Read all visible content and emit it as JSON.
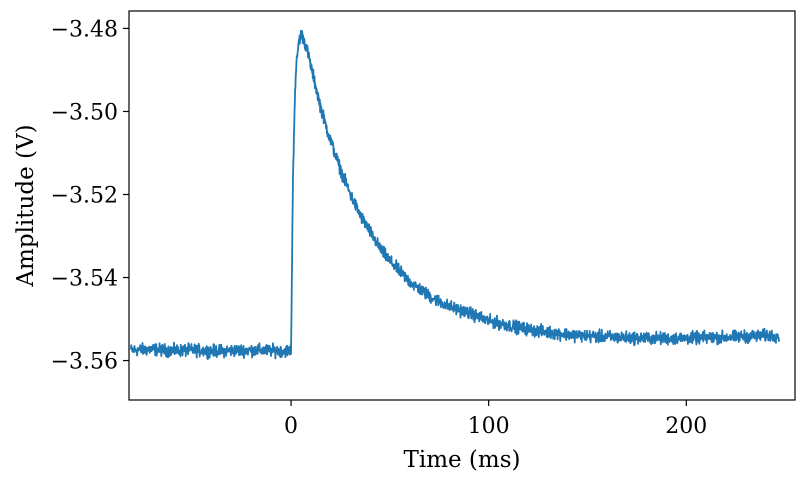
{
  "chart_data": {
    "type": "line",
    "title": "",
    "xlabel": "Time (ms)",
    "ylabel": "Amplitude (V)",
    "xlim": [
      -82,
      255
    ],
    "ylim": [
      -3.5695,
      -3.4758
    ],
    "xticks": [
      0,
      100,
      200
    ],
    "xtick_labels": [
      "0",
      "100",
      "200"
    ],
    "yticks": [
      -3.48,
      -3.5,
      -3.52,
      -3.54,
      -3.56
    ],
    "ytick_labels": [
      "−3.48",
      "−3.50",
      "−3.52",
      "−3.54",
      "−3.56"
    ],
    "grid": false,
    "legend": "none",
    "series": [
      {
        "color": "#1f77b4",
        "x": [
          -81,
          -70,
          -60,
          -50,
          -40,
          -30,
          -20,
          -10,
          -3,
          0,
          1,
          2,
          3,
          4,
          5,
          6,
          7,
          8,
          10,
          12,
          15,
          18,
          20,
          25,
          30,
          35,
          40,
          45,
          50,
          55,
          60,
          70,
          80,
          90,
          100,
          110,
          120,
          130,
          140,
          150,
          160,
          170,
          180,
          190,
          200,
          210,
          220,
          230,
          240,
          247
        ],
        "y": [
          -3.5575,
          -3.5573,
          -3.5576,
          -3.5575,
          -3.5577,
          -3.5576,
          -3.5575,
          -3.5576,
          -3.5577,
          -3.5575,
          -3.515,
          -3.495,
          -3.487,
          -3.483,
          -3.4815,
          -3.482,
          -3.4835,
          -3.485,
          -3.489,
          -3.493,
          -3.499,
          -3.504,
          -3.507,
          -3.514,
          -3.52,
          -3.525,
          -3.529,
          -3.533,
          -3.536,
          -3.5385,
          -3.541,
          -3.5445,
          -3.547,
          -3.5485,
          -3.5505,
          -3.5515,
          -3.5525,
          -3.5532,
          -3.5537,
          -3.5541,
          -3.5543,
          -3.5545,
          -3.5546,
          -3.5547,
          -3.5546,
          -3.5545,
          -3.5544,
          -3.5542,
          -3.554,
          -3.554
        ],
        "noise_amplitude": 0.0016,
        "samples": 2200
      }
    ]
  }
}
